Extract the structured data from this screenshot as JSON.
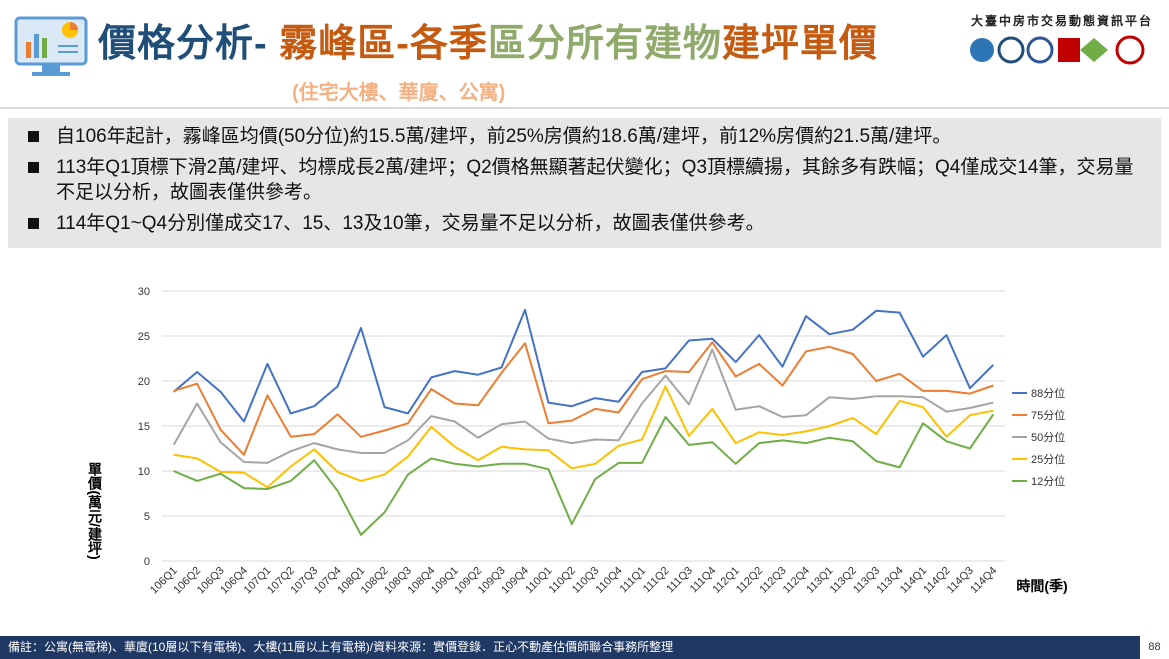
{
  "header": {
    "title_parts": [
      "價格分析-",
      " 霧峰區-各季",
      "區分所有建物",
      "建坪單價"
    ],
    "subtitle": "(住宅大樓、華廈、公寓)",
    "platform": "大臺中房市交易動態資訊平台"
  },
  "bullets": [
    "自106年起計，霧峰區均價(50分位)約15.5萬/建坪，前25%房價約18.6萬/建坪，前12%房價約21.5萬/建坪。",
    "113年Q1頂標下滑2萬/建坪、均標成長2萬/建坪；Q2價格無顯著起伏變化；Q3頂標續揚，其餘多有跌幅；Q4僅成交14筆，交易量不足以分析，故圖表僅供參考。",
    "114年Q1~Q4分別僅成交17、15、13及10筆，交易量不足以分析，故圖表僅供參考。"
  ],
  "chart_data": {
    "type": "line",
    "ylabel": "單價(萬元/建坪)",
    "xlabel": "時間(季)",
    "categories": [
      "106Q1",
      "106Q2",
      "106Q3",
      "106Q4",
      "107Q1",
      "107Q2",
      "107Q3",
      "107Q4",
      "108Q1",
      "108Q2",
      "108Q3",
      "108Q4",
      "109Q1",
      "109Q2",
      "109Q3",
      "109Q4",
      "110Q1",
      "110Q2",
      "110Q3",
      "110Q4",
      "111Q1",
      "111Q2",
      "111Q3",
      "111Q4",
      "112Q1",
      "112Q2",
      "112Q3",
      "112Q4",
      "113Q1",
      "113Q2",
      "113Q3",
      "113Q4",
      "114Q1",
      "114Q2",
      "114Q3",
      "114Q4"
    ],
    "series": [
      {
        "name": "88分位",
        "color": "#4472c4",
        "values": [
          18.8,
          21.0,
          18.8,
          15.5,
          21.9,
          16.4,
          17.2,
          19.4,
          25.9,
          17.1,
          16.4,
          20.4,
          21.1,
          20.7,
          21.5,
          27.9,
          17.6,
          17.2,
          18.1,
          17.7,
          21.0,
          21.4,
          24.5,
          24.7,
          22.1,
          25.1,
          21.6,
          27.2,
          25.2,
          25.7,
          27.8,
          27.6,
          22.7,
          25.1,
          19.2,
          21.8
        ]
      },
      {
        "name": "75分位",
        "color": "#ed7d31",
        "values": [
          18.9,
          19.7,
          14.6,
          11.8,
          18.4,
          13.8,
          14.1,
          16.3,
          13.8,
          14.5,
          15.3,
          19.1,
          17.5,
          17.3,
          20.9,
          24.2,
          15.3,
          15.6,
          16.9,
          16.5,
          20.2,
          21.1,
          21.0,
          24.3,
          20.5,
          21.9,
          19.5,
          23.3,
          23.8,
          23.0,
          20.0,
          20.8,
          18.9,
          18.9,
          18.6,
          19.5
        ]
      },
      {
        "name": "50分位",
        "color": "#a5a5a5",
        "values": [
          12.9,
          17.5,
          13.2,
          11.0,
          10.9,
          12.2,
          13.1,
          12.4,
          12.0,
          12.0,
          13.4,
          16.1,
          15.5,
          13.7,
          15.2,
          15.5,
          13.6,
          13.1,
          13.5,
          13.4,
          17.5,
          20.6,
          17.4,
          23.5,
          16.8,
          17.2,
          16.0,
          16.2,
          18.2,
          18.0,
          18.3,
          18.3,
          18.2,
          16.6,
          17.0,
          17.6
        ]
      },
      {
        "name": "25分位",
        "color": "#ffc000",
        "values": [
          11.8,
          11.4,
          9.9,
          9.8,
          8.2,
          10.5,
          12.4,
          9.9,
          8.9,
          9.6,
          11.6,
          14.9,
          12.7,
          11.2,
          12.7,
          12.4,
          12.3,
          10.3,
          10.8,
          12.8,
          13.5,
          19.4,
          13.9,
          16.9,
          13.1,
          14.3,
          14.0,
          14.4,
          15.0,
          15.9,
          14.1,
          17.8,
          17.1,
          13.8,
          16.2,
          16.7
        ]
      },
      {
        "name": "12分位",
        "color": "#70ad47",
        "values": [
          10.0,
          8.9,
          9.7,
          8.1,
          8.0,
          8.9,
          11.2,
          7.8,
          2.9,
          5.4,
          9.6,
          11.4,
          10.8,
          10.5,
          10.8,
          10.8,
          10.2,
          4.1,
          9.1,
          10.9,
          10.9,
          16.0,
          12.9,
          13.2,
          10.8,
          13.1,
          13.4,
          13.1,
          13.7,
          13.3,
          11.1,
          10.4,
          15.3,
          13.3,
          12.5,
          16.3
        ]
      }
    ],
    "ylim": [
      0,
      30
    ],
    "yticks": [
      0,
      5,
      10,
      15,
      20,
      25,
      30
    ],
    "grid": true,
    "legend": "right"
  },
  "footer": "備註：公寓(無電梯)、華廈(10層以下有電梯)、大樓(11層以上有電梯)/資料來源：實價登錄．正心不動產估價師聯合事務所整理",
  "page_number": "88"
}
